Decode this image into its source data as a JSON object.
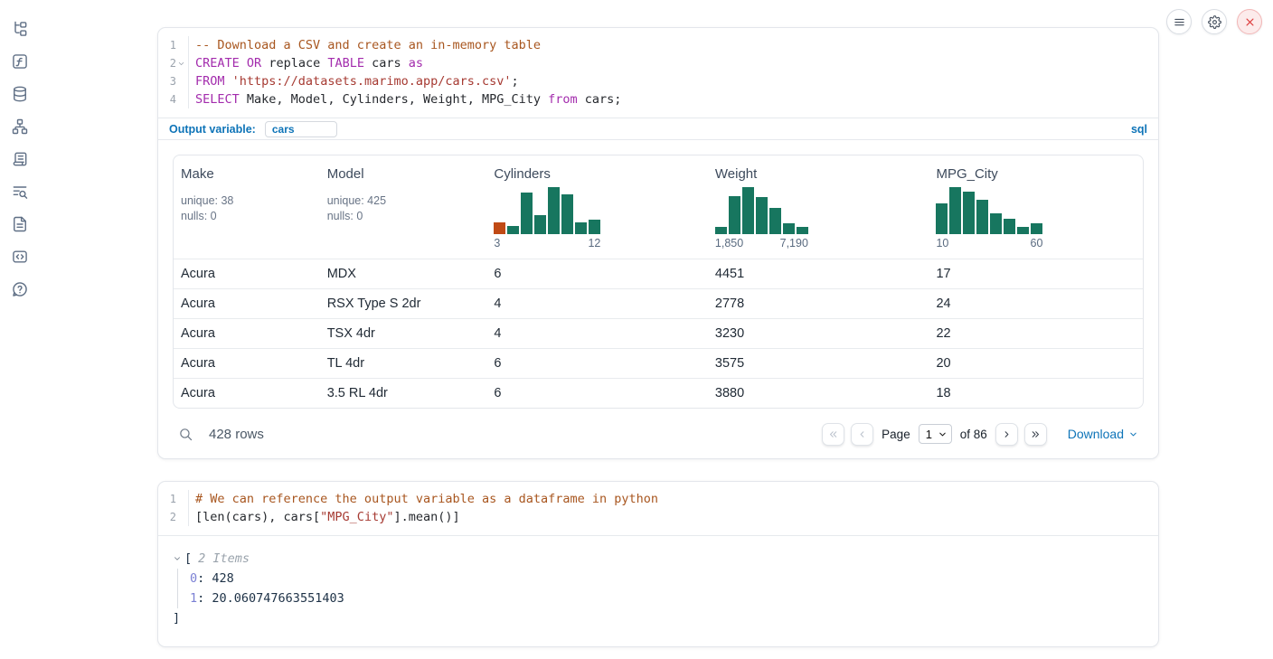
{
  "colors": {
    "accent_blue": "#0e74b8",
    "hist_green": "#17765f",
    "hist_orange": "#c04a15",
    "close_red": "#dd3c3c"
  },
  "sidebar": {
    "icons": [
      "file-explorer-icon",
      "variables-icon",
      "datasources-icon",
      "dependency-graph-icon",
      "outline-icon",
      "logs-icon",
      "documentation-icon",
      "snippets-icon",
      "help-icon"
    ]
  },
  "topbar": {
    "menu_button": "menu",
    "settings_button": "settings",
    "shutdown_button": "shutdown"
  },
  "sql_cell": {
    "lines": [
      {
        "n": "1",
        "fold": false,
        "tokens": [
          {
            "t": "-- Download a CSV and create an in-memory table",
            "c": "comment"
          }
        ]
      },
      {
        "n": "2",
        "fold": true,
        "tokens": [
          {
            "t": "CREATE",
            "c": "kw"
          },
          {
            "t": " ",
            "c": "plain"
          },
          {
            "t": "OR",
            "c": "kw"
          },
          {
            "t": " replace ",
            "c": "plain"
          },
          {
            "t": "TABLE",
            "c": "kw"
          },
          {
            "t": " cars ",
            "c": "plain"
          },
          {
            "t": "as",
            "c": "kw"
          }
        ]
      },
      {
        "n": "3",
        "fold": false,
        "tokens": [
          {
            "t": "FROM",
            "c": "kw"
          },
          {
            "t": " ",
            "c": "plain"
          },
          {
            "t": "'https://datasets.marimo.app/cars.csv'",
            "c": "str"
          },
          {
            "t": ";",
            "c": "plain"
          }
        ]
      },
      {
        "n": "4",
        "fold": false,
        "tokens": [
          {
            "t": "SELECT",
            "c": "kw"
          },
          {
            "t": " Make, Model, Cylinders, Weight, MPG_City ",
            "c": "plain"
          },
          {
            "t": "from",
            "c": "kw"
          },
          {
            "t": " cars;",
            "c": "plain"
          }
        ]
      }
    ],
    "output_variable_label": "Output variable:",
    "output_variable_value": "cars",
    "language_badge": "sql"
  },
  "table": {
    "columns": [
      {
        "label": "Make",
        "stats": [
          "unique: 38",
          "nulls: 0"
        ]
      },
      {
        "label": "Model",
        "stats": [
          "unique: 425",
          "nulls: 0"
        ]
      },
      {
        "label": "Cylinders",
        "hist": {
          "values": [
            13,
            9,
            46,
            21,
            52,
            44,
            13,
            16
          ],
          "highlight_index": 0,
          "min_label": "3",
          "max_label": "12"
        }
      },
      {
        "label": "Weight",
        "hist": {
          "values": [
            8,
            42,
            52,
            41,
            29,
            12,
            8
          ],
          "highlight_index": null,
          "min_label": "1,850",
          "max_label": "7,190"
        }
      },
      {
        "label": "MPG_City",
        "hist": {
          "values": [
            34,
            52,
            47,
            38,
            23,
            17,
            8,
            12
          ],
          "highlight_index": null,
          "min_label": "10",
          "max_label": "60"
        }
      }
    ],
    "rows": [
      [
        "Acura",
        "MDX",
        "6",
        "4451",
        "17"
      ],
      [
        "Acura",
        "RSX Type S 2dr",
        "4",
        "2778",
        "24"
      ],
      [
        "Acura",
        "TSX 4dr",
        "4",
        "3230",
        "22"
      ],
      [
        "Acura",
        "TL 4dr",
        "6",
        "3575",
        "20"
      ],
      [
        "Acura",
        "3.5 RL 4dr",
        "6",
        "3880",
        "18"
      ]
    ],
    "footer": {
      "row_count": "428 rows",
      "page_label": "Page",
      "page_value": "1",
      "of_label": "of 86",
      "download_label": "Download"
    }
  },
  "python_cell": {
    "lines": [
      {
        "n": "1",
        "fold": false,
        "tokens": [
          {
            "t": "# We can reference the output variable as a dataframe in python",
            "c": "comment"
          }
        ]
      },
      {
        "n": "2",
        "fold": false,
        "tokens": [
          {
            "t": "[len(cars), cars[",
            "c": "plain"
          },
          {
            "t": "\"MPG_City\"",
            "c": "str"
          },
          {
            "t": "].mean()]",
            "c": "plain"
          }
        ]
      }
    ]
  },
  "output_tree": {
    "open_bracket": "[",
    "items_label": "2 Items",
    "entries": [
      {
        "key": "0",
        "value": "428"
      },
      {
        "key": "1",
        "value": "20.060747663551403"
      }
    ],
    "close_bracket": "]"
  }
}
